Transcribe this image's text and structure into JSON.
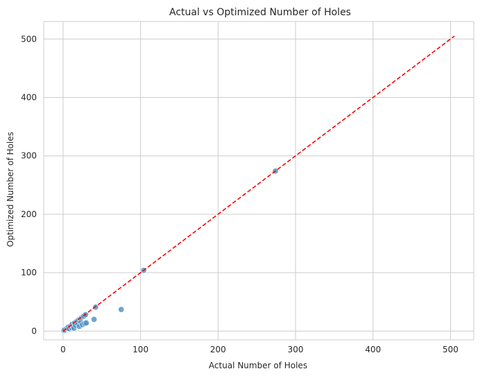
{
  "chart_data": {
    "type": "scatter",
    "title": "Actual vs Optimized Number of Holes",
    "xlabel": "Actual Number of Holes",
    "ylabel": "Optimized Number of Holes",
    "xlim": [
      -25,
      530
    ],
    "ylim": [
      -15,
      530
    ],
    "xticks": [
      "0",
      "100",
      "200",
      "300",
      "400",
      "500"
    ],
    "yticks": [
      "0",
      "100",
      "200",
      "300",
      "400",
      "500"
    ],
    "grid": true,
    "colors": {
      "points": "#4c8fc0",
      "reference_line": "#ff0000",
      "grid": "#cccccc"
    },
    "reference_line": {
      "style": "dashed",
      "from": [
        0,
        0
      ],
      "to": [
        505,
        505
      ]
    },
    "points": [
      {
        "x": 1,
        "y": 1
      },
      {
        "x": 2,
        "y": 2
      },
      {
        "x": 5,
        "y": 5
      },
      {
        "x": 7,
        "y": 7
      },
      {
        "x": 8,
        "y": 4
      },
      {
        "x": 10,
        "y": 9
      },
      {
        "x": 11,
        "y": 6
      },
      {
        "x": 12,
        "y": 12
      },
      {
        "x": 13,
        "y": 8
      },
      {
        "x": 14,
        "y": 5
      },
      {
        "x": 15,
        "y": 14
      },
      {
        "x": 16,
        "y": 10
      },
      {
        "x": 18,
        "y": 17
      },
      {
        "x": 19,
        "y": 12
      },
      {
        "x": 20,
        "y": 19
      },
      {
        "x": 21,
        "y": 8
      },
      {
        "x": 22,
        "y": 21
      },
      {
        "x": 23,
        "y": 15
      },
      {
        "x": 24,
        "y": 23
      },
      {
        "x": 25,
        "y": 11
      },
      {
        "x": 26,
        "y": 25
      },
      {
        "x": 27,
        "y": 26
      },
      {
        "x": 28,
        "y": 13
      },
      {
        "x": 29,
        "y": 28
      },
      {
        "x": 30,
        "y": 14
      },
      {
        "x": 40,
        "y": 20
      },
      {
        "x": 42,
        "y": 41
      },
      {
        "x": 75,
        "y": 37
      },
      {
        "x": 104,
        "y": 104
      },
      {
        "x": 274,
        "y": 274
      }
    ]
  }
}
